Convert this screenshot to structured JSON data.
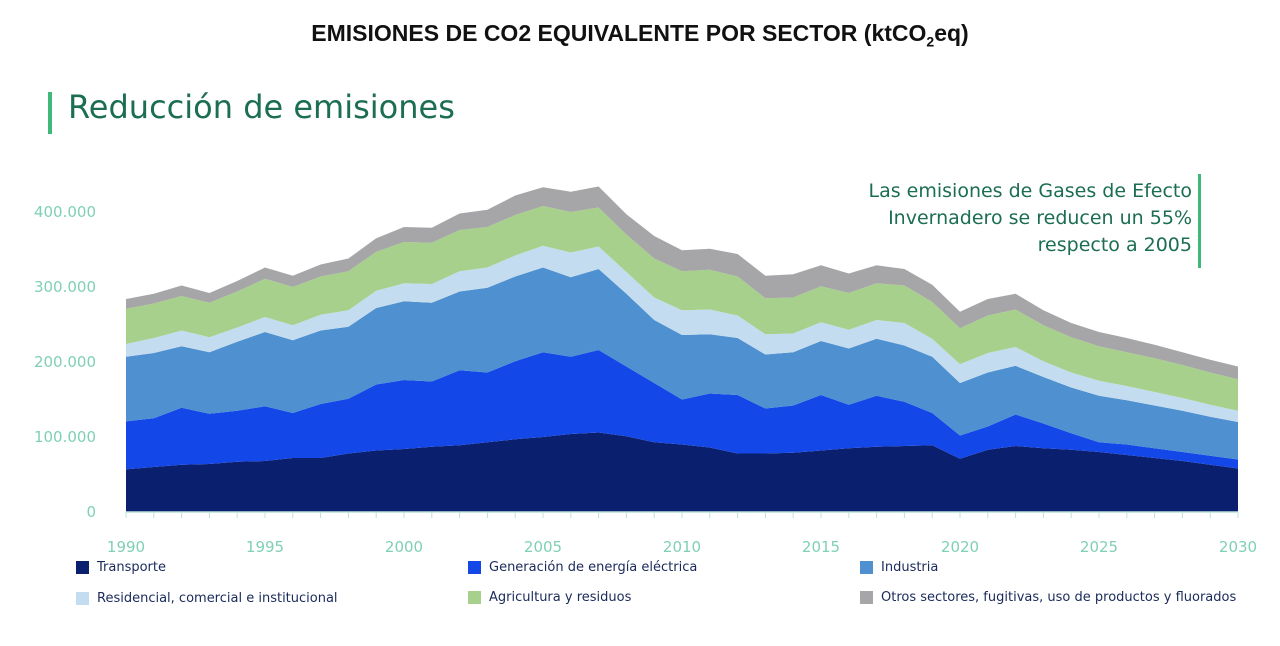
{
  "header": {
    "title": "EMISIONES DE CO2 EQUIVALENTE POR SECTOR (ktCO",
    "title_sub": "2",
    "title_end": "eq)"
  },
  "section": {
    "title": "Reducción de emisiones"
  },
  "annotation": {
    "line1": "Las emisiones de Gases de Efecto",
    "line2": "Invernadero se reducen un 55%",
    "line3": "respecto a 2005"
  },
  "chart_data": {
    "type": "area",
    "stacked": true,
    "x": [
      1990,
      1991,
      1992,
      1993,
      1994,
      1995,
      1996,
      1997,
      1998,
      1999,
      2000,
      2001,
      2002,
      2003,
      2004,
      2005,
      2006,
      2007,
      2008,
      2009,
      2010,
      2011,
      2012,
      2013,
      2014,
      2015,
      2016,
      2017,
      2018,
      2019,
      2020,
      2021,
      2022,
      2023,
      2024,
      2025,
      2026,
      2027,
      2028,
      2029,
      2030
    ],
    "xticks": [
      "1990",
      "1995",
      "2000",
      "2005",
      "2010",
      "2015",
      "2020",
      "2025",
      "2030"
    ],
    "yticks": [
      "0",
      "100.000",
      "200.000",
      "300.000",
      "400.000"
    ],
    "ylim": [
      0,
      450000
    ],
    "xlim": [
      1990,
      2030
    ],
    "series": [
      {
        "name": "Transporte",
        "color": "#0a1f6e",
        "values": [
          57000,
          60000,
          63000,
          64000,
          67000,
          68000,
          72000,
          72000,
          78000,
          82000,
          84000,
          87000,
          89000,
          93000,
          97000,
          100000,
          104000,
          106000,
          101000,
          93000,
          90000,
          86000,
          78000,
          78000,
          79000,
          82000,
          85000,
          87000,
          88000,
          89000,
          71000,
          83000,
          88000,
          85000,
          83000,
          80000,
          76000,
          72000,
          68000,
          63000,
          58000
        ]
      },
      {
        "name": "Generación de energía eléctrica",
        "color": "#1447e8",
        "values": [
          64000,
          65000,
          76000,
          67000,
          68000,
          73000,
          60000,
          72000,
          73000,
          88000,
          92000,
          87000,
          100000,
          93000,
          104000,
          113000,
          103000,
          110000,
          93000,
          79000,
          60000,
          72000,
          78000,
          60000,
          63000,
          74000,
          58000,
          68000,
          59000,
          43000,
          31000,
          31000,
          42000,
          33000,
          22000,
          13000,
          14000,
          13000,
          12000,
          12000,
          12000
        ]
      },
      {
        "name": "Industria",
        "color": "#4e90d0",
        "values": [
          86000,
          87000,
          82000,
          82000,
          92000,
          99000,
          97000,
          98000,
          96000,
          102000,
          105000,
          105000,
          105000,
          113000,
          113000,
          113000,
          106000,
          108000,
          97000,
          84000,
          86000,
          79000,
          76000,
          72000,
          71000,
          72000,
          75000,
          76000,
          75000,
          75000,
          70000,
          72000,
          65000,
          62000,
          61000,
          62000,
          59000,
          57000,
          55000,
          52000,
          50000
        ]
      },
      {
        "name": "Residencial, comercial e institucional",
        "color": "#c4dcef",
        "values": [
          17000,
          20000,
          21000,
          20000,
          19000,
          20000,
          20000,
          21000,
          22000,
          23000,
          24000,
          25000,
          27000,
          27000,
          28000,
          29000,
          33000,
          30000,
          29000,
          30000,
          33000,
          33000,
          30000,
          27000,
          25000,
          25000,
          25000,
          25000,
          30000,
          24000,
          25000,
          26000,
          25000,
          21000,
          20000,
          20000,
          19000,
          18000,
          17000,
          16000,
          15000
        ]
      },
      {
        "name": "Agricultura y residuos",
        "color": "#a7d08c",
        "values": [
          47000,
          46000,
          46000,
          46000,
          48000,
          51000,
          51000,
          51000,
          52000,
          52000,
          55000,
          55000,
          55000,
          54000,
          54000,
          53000,
          54000,
          52000,
          50000,
          52000,
          52000,
          53000,
          52000,
          48000,
          48000,
          48000,
          49000,
          49000,
          50000,
          49000,
          48000,
          50000,
          50000,
          48000,
          47000,
          46000,
          45000,
          45000,
          44000,
          43000,
          42000
        ]
      },
      {
        "name": "Otros sectores, fugitivas, uso de productos y fluorados",
        "color": "#a6a6a8",
        "values": [
          13000,
          13000,
          14000,
          13000,
          14000,
          15000,
          15000,
          16000,
          17000,
          18000,
          20000,
          20000,
          22000,
          23000,
          26000,
          25000,
          27000,
          28000,
          27000,
          30000,
          28000,
          28000,
          30000,
          30000,
          31000,
          28000,
          26000,
          24000,
          22000,
          23000,
          22000,
          22000,
          21000,
          20000,
          19000,
          19000,
          19000,
          18000,
          17000,
          17000,
          17000
        ]
      }
    ]
  }
}
